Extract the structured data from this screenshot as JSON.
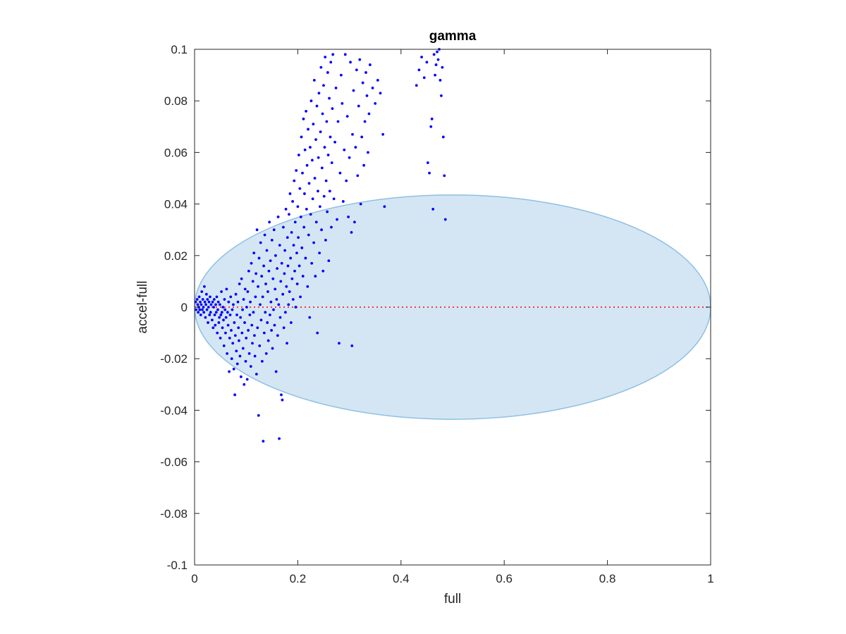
{
  "chart_data": {
    "type": "scatter",
    "title": "gamma",
    "xlabel": "full",
    "ylabel": "accel-full",
    "xlim": [
      0,
      1
    ],
    "ylim": [
      -0.1,
      0.1
    ],
    "xticks": [
      0,
      0.2,
      0.4,
      0.6,
      0.8,
      1
    ],
    "yticks": [
      -0.1,
      -0.08,
      -0.06,
      -0.04,
      -0.02,
      0,
      0.02,
      0.04,
      0.06,
      0.08,
      0.1
    ],
    "xtick_labels": [
      "0",
      "0.2",
      "0.4",
      "0.6",
      "0.8",
      "1"
    ],
    "ytick_labels": [
      "-0.1",
      "-0.08",
      "-0.06",
      "-0.04",
      "-0.02",
      "0",
      "0.02",
      "0.04",
      "0.06",
      "0.08",
      "0.1"
    ],
    "grid": false,
    "box": true,
    "ellipse": {
      "center": [
        0.5,
        0
      ],
      "semi_axes": [
        0.5,
        0.0435
      ],
      "fill": "#d4e6f4",
      "stroke": "#8ec0e2"
    },
    "reference_line": {
      "y": 0,
      "x_range": [
        0,
        1
      ],
      "color": "#ff0000",
      "style": "dotted"
    },
    "marker_color": "#0000ff",
    "points": [
      [
        0.002,
        0.002
      ],
      [
        0.003,
        -0.001
      ],
      [
        0.005,
        0.003
      ],
      [
        0.006,
        0.001
      ],
      [
        0.007,
        -0.002
      ],
      [
        0.008,
        0.0
      ],
      [
        0.009,
        0.004
      ],
      [
        0.01,
        -0.001
      ],
      [
        0.011,
        0.002
      ],
      [
        0.012,
        -0.003
      ],
      [
        0.013,
        0.001
      ],
      [
        0.014,
        0.006
      ],
      [
        0.015,
        -0.001
      ],
      [
        0.016,
        0.003
      ],
      [
        0.017,
        0.0
      ],
      [
        0.018,
        -0.002
      ],
      [
        0.019,
        0.008
      ],
      [
        0.02,
        0.002
      ],
      [
        0.021,
        -0.004
      ],
      [
        0.022,
        0.001
      ],
      [
        0.023,
        0.005
      ],
      [
        0.024,
        -0.001
      ],
      [
        0.025,
        0.003
      ],
      [
        0.026,
        -0.006
      ],
      [
        0.027,
        0.0
      ],
      [
        0.028,
        0.002
      ],
      [
        0.029,
        -0.003
      ],
      [
        0.03,
        0.004
      ],
      [
        0.031,
        -0.002
      ],
      [
        0.032,
        0.001
      ],
      [
        0.034,
        -0.005
      ],
      [
        0.035,
        0.002
      ],
      [
        0.036,
        -0.008
      ],
      [
        0.037,
        0.0
      ],
      [
        0.038,
        0.003
      ],
      [
        0.039,
        -0.003
      ],
      [
        0.04,
        -0.007
      ],
      [
        0.041,
        0.001
      ],
      [
        0.042,
        -0.002
      ],
      [
        0.043,
        0.004
      ],
      [
        0.044,
        -0.01
      ],
      [
        0.045,
        -0.001
      ],
      [
        0.046,
        0.002
      ],
      [
        0.047,
        -0.006
      ],
      [
        0.048,
        -0.004
      ],
      [
        0.049,
        0.001
      ],
      [
        0.05,
        -0.012
      ],
      [
        0.051,
        -0.003
      ],
      [
        0.052,
        0.006
      ],
      [
        0.053,
        -0.002
      ],
      [
        0.054,
        -0.008
      ],
      [
        0.055,
        0.0
      ],
      [
        0.056,
        -0.005
      ],
      [
        0.057,
        -0.015
      ],
      [
        0.058,
        0.003
      ],
      [
        0.059,
        -0.001
      ],
      [
        0.06,
        -0.01
      ],
      [
        0.061,
        -0.004
      ],
      [
        0.062,
        0.007
      ],
      [
        0.063,
        -0.018
      ],
      [
        0.064,
        -0.002
      ],
      [
        0.065,
        -0.007
      ],
      [
        0.066,
        0.002
      ],
      [
        0.067,
        -0.025
      ],
      [
        0.068,
        -0.012
      ],
      [
        0.069,
        -0.003
      ],
      [
        0.07,
        0.004
      ],
      [
        0.071,
        -0.009
      ],
      [
        0.072,
        -0.02
      ],
      [
        0.073,
        -0.001
      ],
      [
        0.074,
        -0.014
      ],
      [
        0.075,
        0.001
      ],
      [
        0.076,
        -0.024
      ],
      [
        0.077,
        -0.006
      ],
      [
        0.078,
        -0.034
      ],
      [
        0.079,
        -0.011
      ],
      [
        0.08,
        0.005
      ],
      [
        0.081,
        -0.017
      ],
      [
        0.082,
        -0.003
      ],
      [
        0.083,
        -0.022
      ],
      [
        0.084,
        0.002
      ],
      [
        0.085,
        -0.008
      ],
      [
        0.086,
        -0.013
      ],
      [
        0.087,
        0.009
      ],
      [
        0.088,
        -0.019
      ],
      [
        0.089,
        -0.004
      ],
      [
        0.09,
        -0.027
      ],
      [
        0.091,
        0.011
      ],
      [
        0.092,
        -0.01
      ],
      [
        0.093,
        -0.001
      ],
      [
        0.094,
        -0.016
      ],
      [
        0.095,
        0.003
      ],
      [
        0.096,
        -0.03
      ],
      [
        0.097,
        -0.006
      ],
      [
        0.098,
        0.007
      ],
      [
        0.099,
        -0.021
      ],
      [
        0.1,
        -0.012
      ],
      [
        0.101,
        0.0
      ],
      [
        0.102,
        -0.028
      ],
      [
        0.103,
        0.006
      ],
      [
        0.104,
        -0.009
      ],
      [
        0.105,
        0.014
      ],
      [
        0.106,
        -0.018
      ],
      [
        0.107,
        -0.003
      ],
      [
        0.108,
        0.002
      ],
      [
        0.109,
        -0.023
      ],
      [
        0.11,
        0.017
      ],
      [
        0.111,
        -0.007
      ],
      [
        0.112,
        -0.014
      ],
      [
        0.113,
        0.01
      ],
      [
        0.114,
        -0.002
      ],
      [
        0.115,
        0.021
      ],
      [
        0.116,
        -0.011
      ],
      [
        0.117,
        -0.019
      ],
      [
        0.118,
        0.004
      ],
      [
        0.119,
        0.013
      ],
      [
        0.12,
        -0.026
      ],
      [
        0.121,
        0.03
      ],
      [
        0.122,
        -0.008
      ],
      [
        0.123,
        0.008
      ],
      [
        0.124,
        -0.042
      ],
      [
        0.125,
        0.019
      ],
      [
        0.126,
        -0.015
      ],
      [
        0.127,
        0.001
      ],
      [
        0.128,
        0.025
      ],
      [
        0.129,
        -0.005
      ],
      [
        0.13,
        0.012
      ],
      [
        0.131,
        -0.021
      ],
      [
        0.132,
        0.004
      ],
      [
        0.133,
        -0.052
      ],
      [
        0.134,
        0.016
      ],
      [
        0.135,
        -0.01
      ],
      [
        0.136,
        0.028
      ],
      [
        0.137,
        -0.002
      ],
      [
        0.138,
        0.009
      ],
      [
        0.139,
        -0.018
      ],
      [
        0.14,
        0.022
      ],
      [
        0.141,
        -0.006
      ],
      [
        0.142,
        0.006
      ],
      [
        0.143,
        -0.013
      ],
      [
        0.144,
        0.014
      ],
      [
        0.145,
        0.033
      ],
      [
        0.146,
        -0.003
      ],
      [
        0.147,
        0.018
      ],
      [
        0.148,
        0.002
      ],
      [
        0.149,
        -0.009
      ],
      [
        0.15,
        0.026
      ],
      [
        0.151,
        -0.016
      ],
      [
        0.152,
        0.011
      ],
      [
        0.153,
        -0.001
      ],
      [
        0.154,
        0.03
      ],
      [
        0.155,
        -0.007
      ],
      [
        0.156,
        0.007
      ],
      [
        0.157,
        0.02
      ],
      [
        0.158,
        -0.025
      ],
      [
        0.159,
        0.003
      ],
      [
        0.16,
        0.015
      ],
      [
        0.161,
        -0.011
      ],
      [
        0.162,
        0.035
      ],
      [
        0.163,
        0.001
      ],
      [
        0.164,
        -0.051
      ],
      [
        0.165,
        0.024
      ],
      [
        0.166,
        -0.004
      ],
      [
        0.167,
        0.01
      ],
      [
        0.168,
        -0.034
      ],
      [
        0.169,
        0.017
      ],
      [
        0.17,
        -0.036
      ],
      [
        0.171,
        0.005
      ],
      [
        0.172,
        0.031
      ],
      [
        0.173,
        -0.008
      ],
      [
        0.174,
        0.013
      ],
      [
        0.175,
        0.022
      ],
      [
        0.176,
        -0.002
      ],
      [
        0.177,
        0.038
      ],
      [
        0.178,
        0.008
      ],
      [
        0.179,
        -0.014
      ],
      [
        0.18,
        0.027
      ],
      [
        0.181,
        0.016
      ],
      [
        0.182,
        0.001
      ],
      [
        0.183,
        0.036
      ],
      [
        0.184,
        0.006
      ],
      [
        0.185,
        0.044
      ],
      [
        0.186,
        0.019
      ],
      [
        0.187,
        -0.006
      ],
      [
        0.188,
        0.029
      ],
      [
        0.189,
        0.011
      ],
      [
        0.19,
        0.041
      ],
      [
        0.191,
        0.003
      ],
      [
        0.192,
        0.024
      ],
      [
        0.193,
        0.049
      ],
      [
        0.194,
        0.014
      ],
      [
        0.195,
        0.033
      ],
      [
        0.196,
        0.0
      ],
      [
        0.197,
        0.053
      ],
      [
        0.198,
        0.021
      ],
      [
        0.199,
        0.009
      ],
      [
        0.2,
        0.039
      ],
      [
        0.201,
        0.027
      ],
      [
        0.202,
        0.059
      ],
      [
        0.203,
        0.016
      ],
      [
        0.204,
        0.046
      ],
      [
        0.205,
        0.004
      ],
      [
        0.206,
        0.035
      ],
      [
        0.207,
        0.066
      ],
      [
        0.208,
        0.023
      ],
      [
        0.209,
        0.052
      ],
      [
        0.21,
        0.012
      ],
      [
        0.211,
        0.073
      ],
      [
        0.212,
        0.031
      ],
      [
        0.213,
        0.044
      ],
      [
        0.214,
        0.061
      ],
      [
        0.215,
        0.019
      ],
      [
        0.216,
        0.076
      ],
      [
        0.217,
        0.038
      ],
      [
        0.218,
        0.055
      ],
      [
        0.219,
        0.008
      ],
      [
        0.22,
        0.069
      ],
      [
        0.221,
        0.028
      ],
      [
        0.222,
        0.048
      ],
      [
        0.223,
        -0.004
      ],
      [
        0.224,
        0.062
      ],
      [
        0.225,
        0.036
      ],
      [
        0.226,
        0.08
      ],
      [
        0.227,
        0.017
      ],
      [
        0.228,
        0.057
      ],
      [
        0.229,
        0.042
      ],
      [
        0.23,
        0.071
      ],
      [
        0.231,
        0.025
      ],
      [
        0.232,
        0.088
      ],
      [
        0.233,
        0.05
      ],
      [
        0.234,
        0.012
      ],
      [
        0.235,
        0.065
      ],
      [
        0.236,
        0.033
      ],
      [
        0.237,
        0.078
      ],
      [
        0.238,
        -0.01
      ],
      [
        0.239,
        0.045
      ],
      [
        0.24,
        0.058
      ],
      [
        0.241,
        0.083
      ],
      [
        0.242,
        0.021
      ],
      [
        0.243,
        0.039
      ],
      [
        0.244,
        0.068
      ],
      [
        0.245,
        0.093
      ],
      [
        0.246,
        0.03
      ],
      [
        0.247,
        0.054
      ],
      [
        0.248,
        0.075
      ],
      [
        0.249,
        0.014
      ],
      [
        0.25,
        0.086
      ],
      [
        0.251,
        0.043
      ],
      [
        0.252,
        0.062
      ],
      [
        0.253,
        0.097
      ],
      [
        0.254,
        0.026
      ],
      [
        0.255,
        0.049
      ],
      [
        0.256,
        0.072
      ],
      [
        0.257,
        0.037
      ],
      [
        0.258,
        0.091
      ],
      [
        0.259,
        0.059
      ],
      [
        0.26,
        0.018
      ],
      [
        0.261,
        0.081
      ],
      [
        0.262,
        0.045
      ],
      [
        0.263,
        0.066
      ],
      [
        0.264,
        0.095
      ],
      [
        0.265,
        0.031
      ],
      [
        0.266,
        0.056
      ],
      [
        0.267,
        0.077
      ],
      [
        0.268,
        0.098
      ],
      [
        0.27,
        0.042
      ],
      [
        0.272,
        0.064
      ],
      [
        0.274,
        0.085
      ],
      [
        0.276,
        0.034
      ],
      [
        0.278,
        0.072
      ],
      [
        0.28,
        -0.014
      ],
      [
        0.282,
        0.052
      ],
      [
        0.284,
        0.09
      ],
      [
        0.286,
        0.079
      ],
      [
        0.288,
        0.041
      ],
      [
        0.29,
        0.061
      ],
      [
        0.292,
        0.098
      ],
      [
        0.294,
        0.049
      ],
      [
        0.296,
        0.074
      ],
      [
        0.298,
        0.035
      ],
      [
        0.3,
        0.058
      ],
      [
        0.302,
        0.095
      ],
      [
        0.304,
        0.029
      ],
      [
        0.305,
        -0.015
      ],
      [
        0.306,
        0.067
      ],
      [
        0.308,
        0.084
      ],
      [
        0.31,
        0.033
      ],
      [
        0.312,
        0.062
      ],
      [
        0.314,
        0.092
      ],
      [
        0.316,
        0.051
      ],
      [
        0.318,
        0.078
      ],
      [
        0.32,
        0.096
      ],
      [
        0.322,
        0.04
      ],
      [
        0.324,
        0.066
      ],
      [
        0.326,
        0.087
      ],
      [
        0.328,
        0.055
      ],
      [
        0.33,
        0.072
      ],
      [
        0.332,
        0.091
      ],
      [
        0.334,
        0.082
      ],
      [
        0.336,
        0.06
      ],
      [
        0.338,
        0.075
      ],
      [
        0.34,
        0.094
      ],
      [
        0.345,
        0.085
      ],
      [
        0.35,
        0.079
      ],
      [
        0.355,
        0.088
      ],
      [
        0.36,
        0.083
      ],
      [
        0.365,
        0.067
      ],
      [
        0.368,
        0.039
      ],
      [
        0.43,
        0.086
      ],
      [
        0.435,
        0.092
      ],
      [
        0.44,
        0.097
      ],
      [
        0.445,
        0.089
      ],
      [
        0.45,
        0.095
      ],
      [
        0.452,
        0.056
      ],
      [
        0.455,
        0.052
      ],
      [
        0.458,
        0.07
      ],
      [
        0.46,
        0.073
      ],
      [
        0.462,
        0.038
      ],
      [
        0.464,
        0.098
      ],
      [
        0.466,
        0.09
      ],
      [
        0.468,
        0.094
      ],
      [
        0.47,
        0.099
      ],
      [
        0.472,
        0.096
      ],
      [
        0.474,
        0.1
      ],
      [
        0.476,
        0.088
      ],
      [
        0.478,
        0.082
      ],
      [
        0.48,
        0.093
      ],
      [
        0.482,
        0.066
      ],
      [
        0.484,
        0.051
      ],
      [
        0.486,
        0.034
      ]
    ]
  }
}
